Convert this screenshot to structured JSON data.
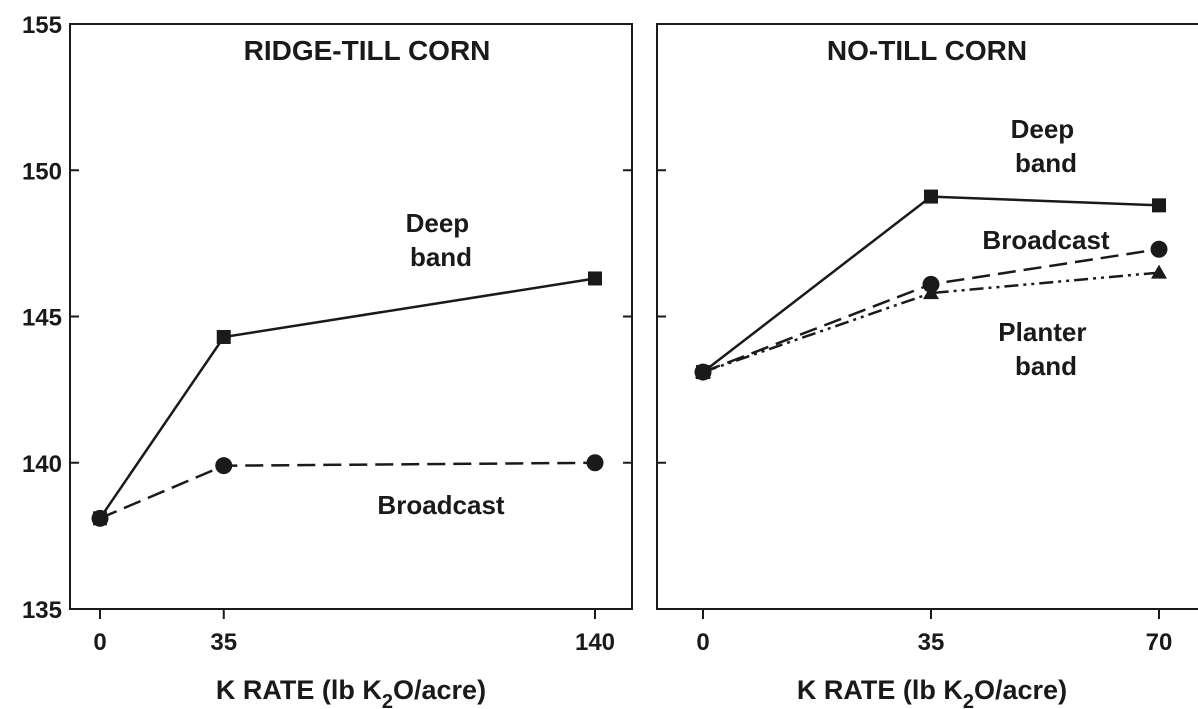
{
  "chart_data": [
    {
      "type": "line",
      "title": "RIDGE-TILL CORN",
      "xlabel": {
        "prefix": "K RATE (lb K",
        "sub": "2",
        "suffix": "O/acre)"
      },
      "ylabel": "",
      "x": [
        0,
        35,
        140
      ],
      "xticks": [
        "0",
        "35",
        "140"
      ],
      "xlim": [
        0,
        140
      ],
      "ylim": [
        135,
        155
      ],
      "yticks": [
        "135",
        "140",
        "145",
        "150",
        "155"
      ],
      "grid": false,
      "series": [
        {
          "name": "Deep band",
          "label_lines": [
            "Deep",
            "band"
          ],
          "marker": "square",
          "dash": "solid",
          "values": [
            138.1,
            144.3,
            146.3
          ]
        },
        {
          "name": "Broadcast",
          "label_lines": [
            "Broadcast"
          ],
          "marker": "circle",
          "dash": "dashed",
          "values": [
            138.1,
            139.9,
            140.0
          ]
        }
      ]
    },
    {
      "type": "line",
      "title": "NO-TILL CORN",
      "xlabel": {
        "prefix": "K RATE (lb K",
        "sub": "2",
        "suffix": "O/acre)"
      },
      "ylabel": "",
      "x": [
        0,
        35,
        70
      ],
      "xticks": [
        "0",
        "35",
        "70"
      ],
      "xlim": [
        0,
        70
      ],
      "ylim": [
        135,
        155
      ],
      "yticks": [
        "135",
        "140",
        "145",
        "150",
        "155"
      ],
      "grid": false,
      "series": [
        {
          "name": "Deep band",
          "label_lines": [
            "Deep",
            "band"
          ],
          "marker": "square",
          "dash": "solid",
          "values": [
            143.1,
            149.1,
            148.8
          ]
        },
        {
          "name": "Broadcast",
          "label_lines": [
            "Broadcast"
          ],
          "marker": "circle",
          "dash": "dashed",
          "values": [
            143.1,
            146.1,
            147.3
          ]
        },
        {
          "name": "Planter band",
          "label_lines": [
            "Planter",
            "band"
          ],
          "marker": "triangle",
          "dash": "dashdotdot",
          "values": [
            143.1,
            145.8,
            146.5
          ]
        }
      ]
    }
  ]
}
